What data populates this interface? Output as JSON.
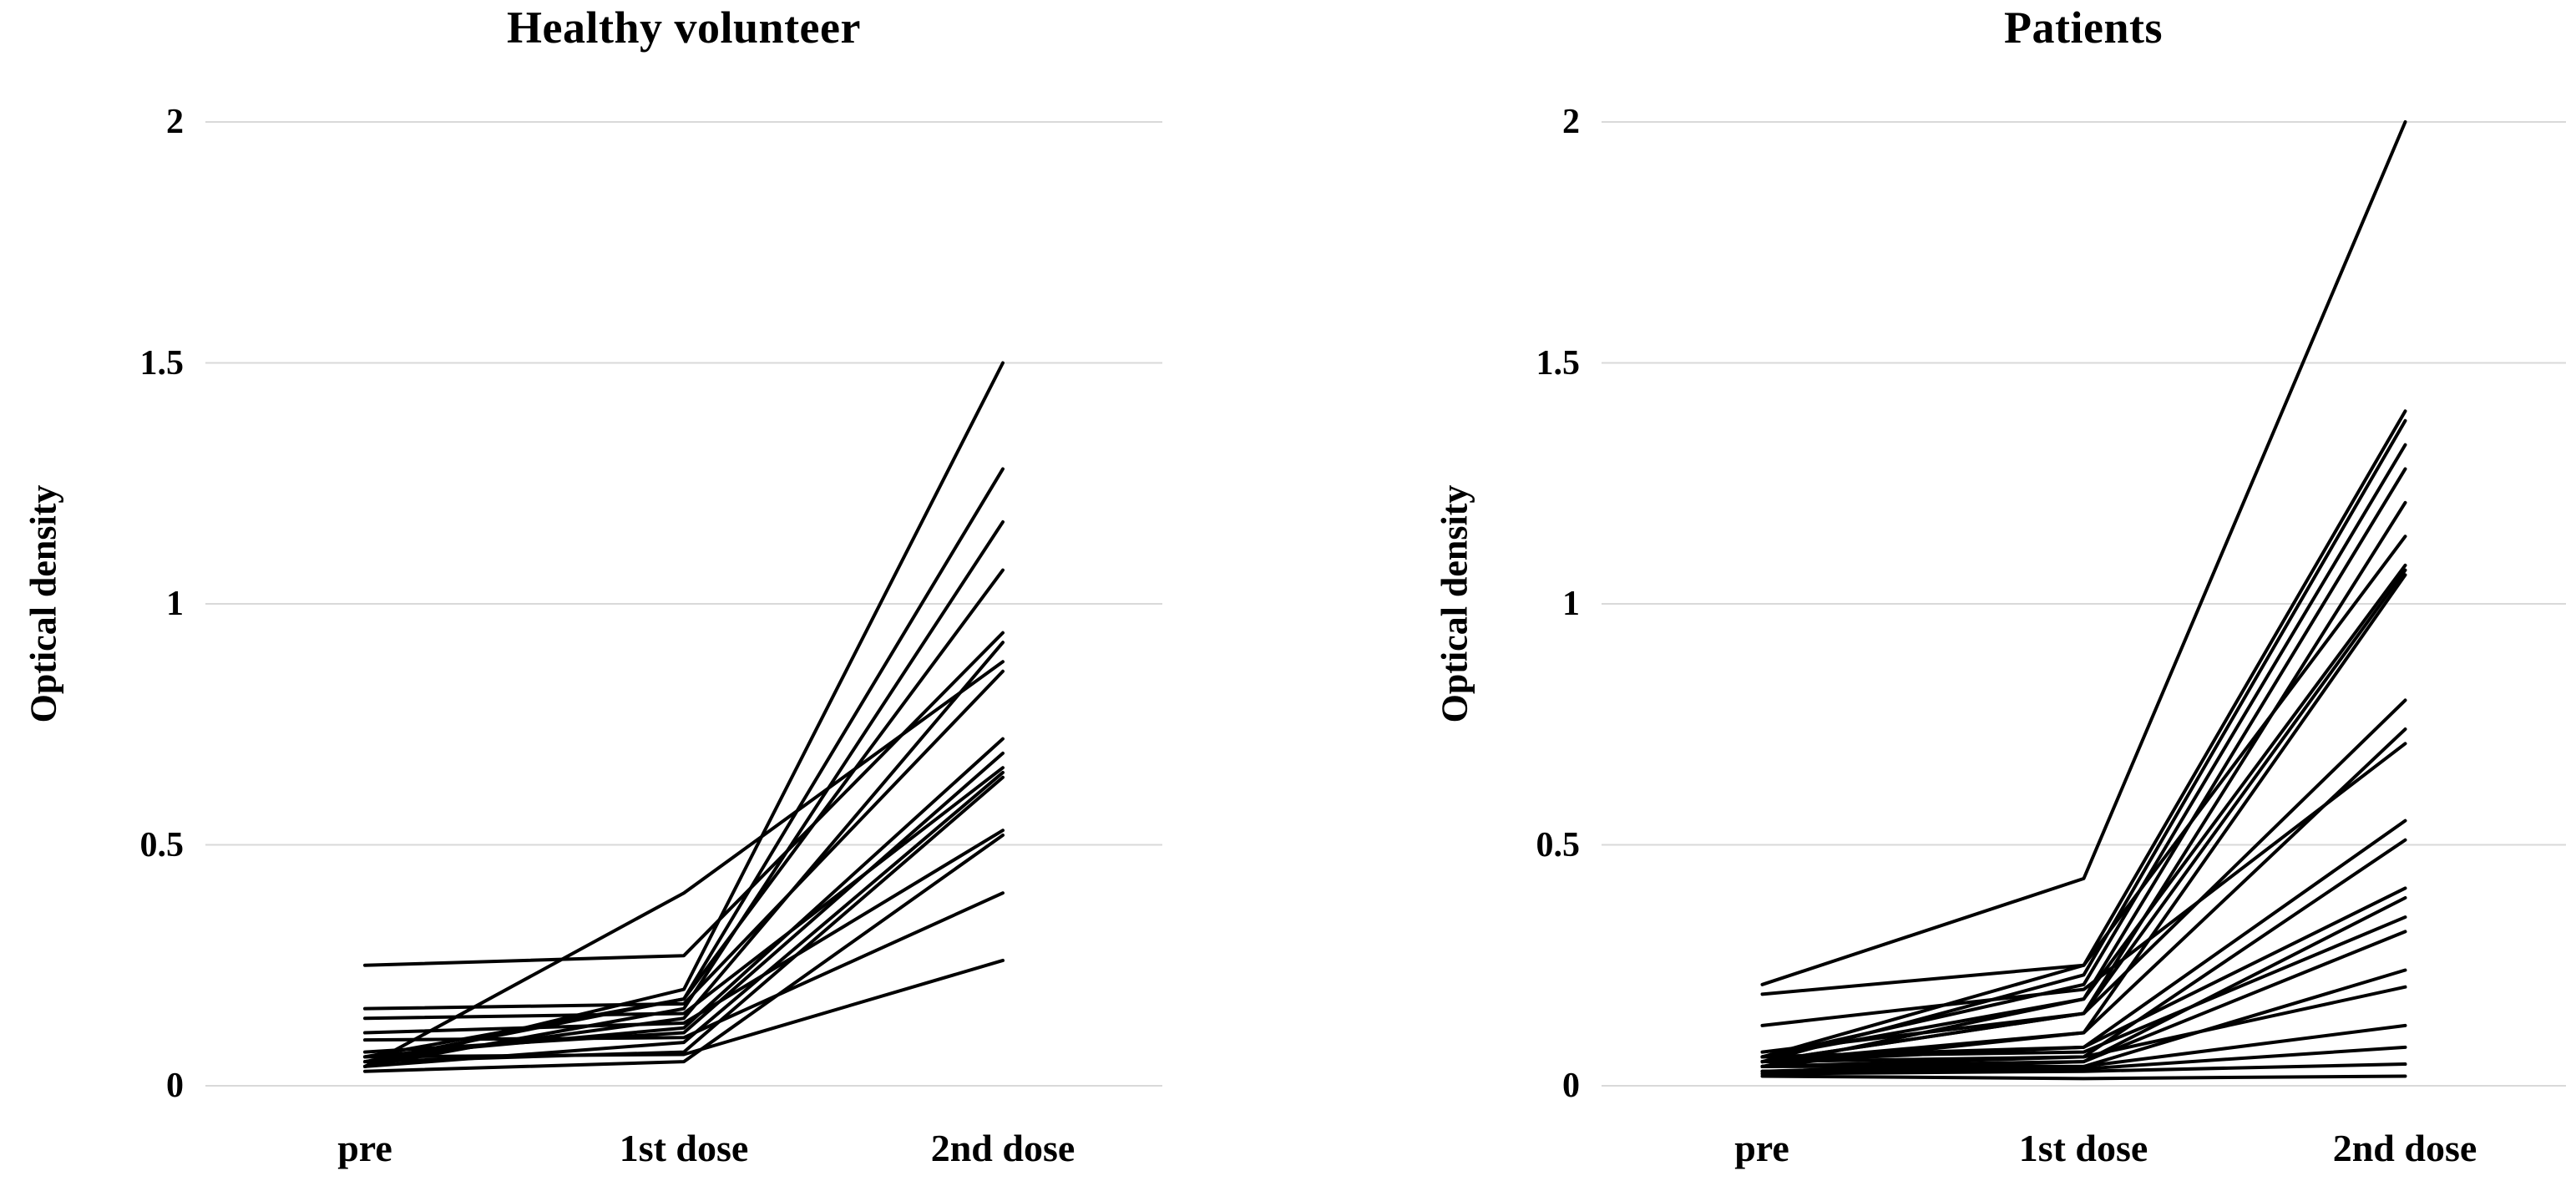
{
  "figure": {
    "background_color": "#ffffff",
    "gridline_color": "#d9d9d9",
    "series_line_color": "#000000",
    "text_color": "#000000"
  },
  "chart_data": [
    {
      "type": "line",
      "title": "Healthy volunteer",
      "ylabel": "Optical density",
      "xlabel": "",
      "categories": [
        "pre",
        "1st dose",
        "2nd dose"
      ],
      "ylim": [
        0,
        2
      ],
      "yticks": [
        0,
        0.5,
        1,
        1.5,
        2
      ],
      "ytick_labels": [
        "0",
        "0.5",
        "1",
        "1.5",
        "2"
      ],
      "grid": "horizontal-only",
      "legend": "none",
      "series_style": "individual-subject-black-lines",
      "series": [
        [
          0.04,
          0.2,
          1.5
        ],
        [
          0.05,
          0.18,
          1.28
        ],
        [
          0.04,
          0.16,
          1.17
        ],
        [
          0.06,
          0.18,
          1.07
        ],
        [
          0.25,
          0.27,
          0.94
        ],
        [
          0.05,
          0.14,
          0.92
        ],
        [
          0.04,
          0.4,
          0.88
        ],
        [
          0.16,
          0.17,
          0.86
        ],
        [
          0.06,
          0.12,
          0.72
        ],
        [
          0.07,
          0.11,
          0.69
        ],
        [
          0.14,
          0.15,
          0.66
        ],
        [
          0.04,
          0.09,
          0.65
        ],
        [
          0.05,
          0.07,
          0.64
        ],
        [
          0.11,
          0.13,
          0.53
        ],
        [
          0.03,
          0.05,
          0.52
        ],
        [
          0.095,
          0.1,
          0.4
        ],
        [
          0.06,
          0.065,
          0.26
        ]
      ]
    },
    {
      "type": "line",
      "title": "Patients",
      "ylabel": "Optical density",
      "xlabel": "",
      "categories": [
        "pre",
        "1st dose",
        "2nd dose"
      ],
      "ylim": [
        0,
        2
      ],
      "yticks": [
        0,
        0.5,
        1,
        1.5,
        2
      ],
      "ytick_labels": [
        "0",
        "0.5",
        "1",
        "1.5",
        "2"
      ],
      "grid": "horizontal-only",
      "legend": "none",
      "series_style": "individual-subject-black-lines",
      "series": [
        [
          0.21,
          0.43,
          2.0
        ],
        [
          0.06,
          0.25,
          1.4
        ],
        [
          0.05,
          0.23,
          1.38
        ],
        [
          0.06,
          0.21,
          1.33
        ],
        [
          0.04,
          0.18,
          1.28
        ],
        [
          0.05,
          0.15,
          1.21
        ],
        [
          0.19,
          0.25,
          1.14
        ],
        [
          0.06,
          0.18,
          1.08
        ],
        [
          0.05,
          0.15,
          1.07
        ],
        [
          0.04,
          0.11,
          1.06
        ],
        [
          0.07,
          0.15,
          0.8
        ],
        [
          0.05,
          0.11,
          0.74
        ],
        [
          0.125,
          0.2,
          0.71
        ],
        [
          0.06,
          0.08,
          0.55
        ],
        [
          0.04,
          0.06,
          0.51
        ],
        [
          0.05,
          0.08,
          0.41
        ],
        [
          0.03,
          0.05,
          0.39
        ],
        [
          0.06,
          0.07,
          0.35
        ],
        [
          0.04,
          0.05,
          0.32
        ],
        [
          0.03,
          0.04,
          0.24
        ],
        [
          0.05,
          0.06,
          0.205
        ],
        [
          0.04,
          0.04,
          0.125
        ],
        [
          0.03,
          0.035,
          0.08
        ],
        [
          0.025,
          0.03,
          0.045
        ],
        [
          0.02,
          0.015,
          0.02
        ]
      ]
    }
  ]
}
